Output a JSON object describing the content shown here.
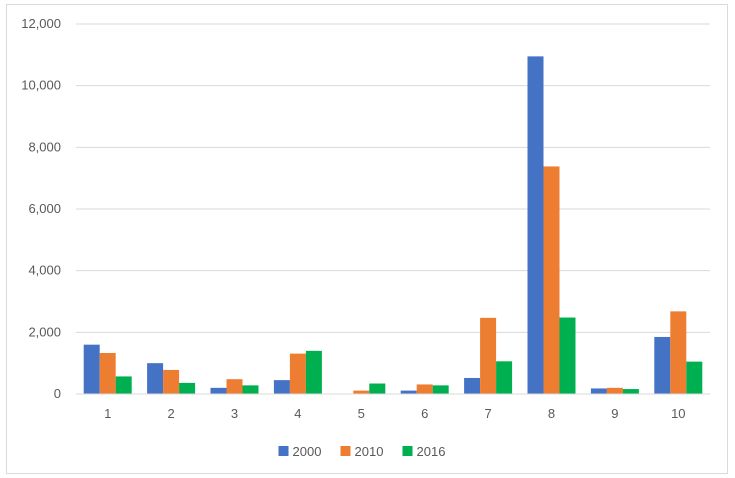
{
  "chart_data": {
    "type": "bar",
    "title": "",
    "xlabel": "",
    "ylabel": "",
    "categories": [
      "1",
      "2",
      "3",
      "4",
      "5",
      "6",
      "7",
      "8",
      "9",
      "10"
    ],
    "series": [
      {
        "name": "2000",
        "color": "#4472c4",
        "values": [
          1600,
          1000,
          200,
          450,
          0,
          110,
          520,
          10950,
          180,
          1850
        ]
      },
      {
        "name": "2010",
        "color": "#ed7d31",
        "values": [
          1330,
          780,
          480,
          1310,
          110,
          310,
          2470,
          7380,
          200,
          2680
        ]
      },
      {
        "name": "2016",
        "color": "#00b050",
        "values": [
          570,
          360,
          280,
          1400,
          340,
          280,
          1060,
          2480,
          160,
          1050
        ]
      }
    ],
    "ylim": [
      0,
      12000
    ],
    "yticks": [
      "0",
      "2,000",
      "4,000",
      "6,000",
      "8,000",
      "10,000",
      "12,000"
    ],
    "grid": true,
    "legend_position": "bottom"
  }
}
